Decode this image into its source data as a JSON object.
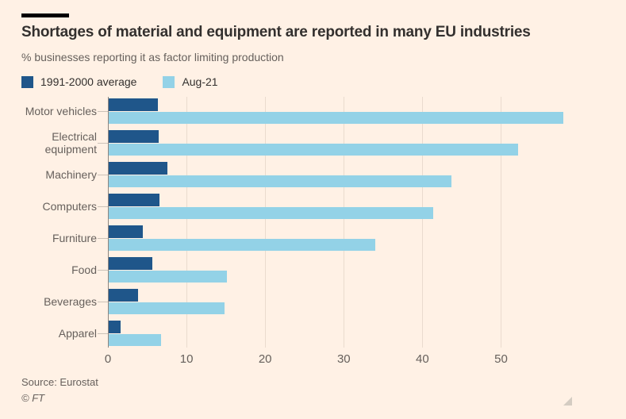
{
  "figure": {
    "title": "Shortages of material and equipment are reported in many EU industries",
    "subtitle": "% businesses reporting it as factor limiting production",
    "source": "Source: Eurostat",
    "copyright": "© FT"
  },
  "colors": {
    "background": "#FFF1E5",
    "dark_series": "#1F568A",
    "light_series": "#93D2E7",
    "title_text": "#33302E",
    "muted_text": "#66605C",
    "gridline": "#EADBCE",
    "axis_line": "#66605C"
  },
  "legend": [
    {
      "label": "1991-2000 average",
      "color": "#1F568A"
    },
    {
      "label": "Aug-21",
      "color": "#93D2E7"
    }
  ],
  "chart_data": {
    "type": "bar",
    "orientation": "horizontal",
    "title": "Shortages of material and equipment are reported in many EU industries",
    "subtitle": "% businesses reporting it as factor limiting production",
    "xlabel": "",
    "ylabel": "",
    "categories": [
      "Motor vehicles",
      "Electrical equipment",
      "Machinery",
      "Computers",
      "Furniture",
      "Food",
      "Beverages",
      "Apparel"
    ],
    "series": [
      {
        "name": "1991-2000 average",
        "color": "#1F568A",
        "values": [
          6.3,
          6.4,
          7.5,
          6.5,
          4.3,
          5.6,
          3.7,
          1.5
        ]
      },
      {
        "name": "Aug-21",
        "color": "#93D2E7",
        "values": [
          57.8,
          52.1,
          43.6,
          41.3,
          33.9,
          15.0,
          14.7,
          6.7
        ]
      }
    ],
    "xticks": [
      0,
      10,
      20,
      30,
      40,
      50
    ],
    "xlim": [
      0,
      65.4
    ],
    "grid": "vertical",
    "legend_position": "top-left"
  }
}
